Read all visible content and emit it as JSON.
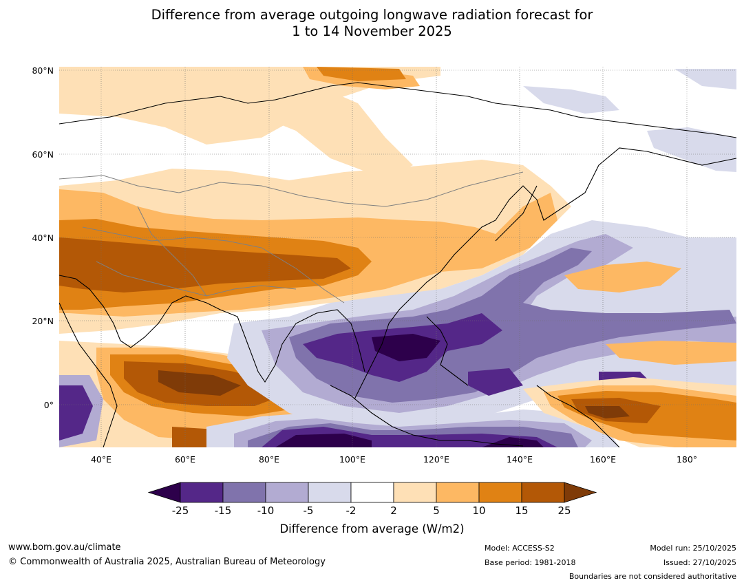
{
  "title_line1": "Difference from average outgoing longwave radiation forecast for",
  "title_line2": "1 to 14 November 2025",
  "lat_labels": [
    "80°N",
    "60°N",
    "40°N",
    "20°N",
    "0°"
  ],
  "lon_labels": [
    "40°E",
    "60°E",
    "80°E",
    "100°E",
    "120°E",
    "140°E",
    "160°E",
    "180°"
  ],
  "colorbar": {
    "ticks": [
      "-25",
      "-15",
      "-10",
      "-5",
      "-2",
      "2",
      "5",
      "10",
      "15",
      "25"
    ],
    "colors": [
      "#2d004b",
      "#542788",
      "#8073ac",
      "#b2abd2",
      "#d8daeb",
      "#ffffff",
      "#fee0b6",
      "#fdb863",
      "#e08214",
      "#b35806",
      "#7f3b08"
    ],
    "label": "Difference from average (W/m2)"
  },
  "footer": {
    "website": "www.bom.gov.au/climate",
    "copyright": "© Commonwealth of Australia 2025, Australian Bureau of Meteorology",
    "model": "Model: ACCESS-S2",
    "base_period": "Base period: 1981-2018",
    "model_run": "Model run: 25/10/2025",
    "issued": "Issued: 27/10/2025",
    "disclaimer": "Boundaries are not considered authoritative"
  }
}
